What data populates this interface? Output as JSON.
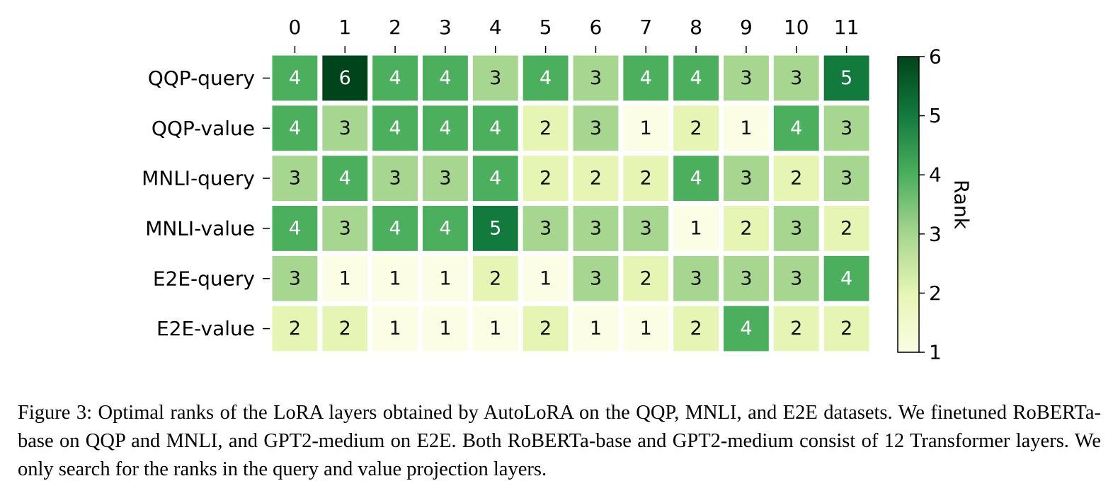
{
  "chart_data": {
    "type": "heatmap",
    "x": [
      "0",
      "1",
      "2",
      "3",
      "4",
      "5",
      "6",
      "7",
      "8",
      "9",
      "10",
      "11"
    ],
    "y": [
      "QQP-query",
      "QQP-value",
      "MNLI-query",
      "MNLI-value",
      "E2E-query",
      "E2E-value"
    ],
    "values": [
      [
        4,
        6,
        4,
        4,
        3,
        4,
        3,
        4,
        4,
        3,
        3,
        5
      ],
      [
        4,
        3,
        4,
        4,
        4,
        2,
        3,
        1,
        2,
        1,
        4,
        3
      ],
      [
        3,
        4,
        3,
        3,
        4,
        2,
        2,
        2,
        4,
        3,
        2,
        3
      ],
      [
        4,
        3,
        4,
        4,
        5,
        3,
        3,
        3,
        1,
        2,
        3,
        2
      ],
      [
        3,
        1,
        1,
        1,
        2,
        1,
        3,
        2,
        3,
        3,
        3,
        4
      ],
      [
        2,
        2,
        1,
        1,
        1,
        2,
        1,
        1,
        2,
        4,
        2,
        2
      ]
    ],
    "colorbar": {
      "label": "Rank",
      "range": [
        1,
        6
      ],
      "ticks": [
        "1",
        "2",
        "3",
        "4",
        "5",
        "6"
      ],
      "colormap": "Greens"
    },
    "colors": {
      "1": "#fbfde4",
      "2": "#e6f5b4",
      "3": "#a6d68f",
      "4": "#4caf5e",
      "5": "#137a3e",
      "6": "#00441b"
    },
    "legend": "colorbar-right"
  },
  "caption": "Figure 3: Optimal ranks of the LoRA layers obtained by AutoLoRA on the QQP, MNLI, and E2E datasets. We finetuned RoBERTa-base on QQP and MNLI, and GPT2-medium on E2E. Both RoBERTa-base and GPT2-medium consist of 12 Transformer layers. We only search for the ranks in the query and value projection layers."
}
